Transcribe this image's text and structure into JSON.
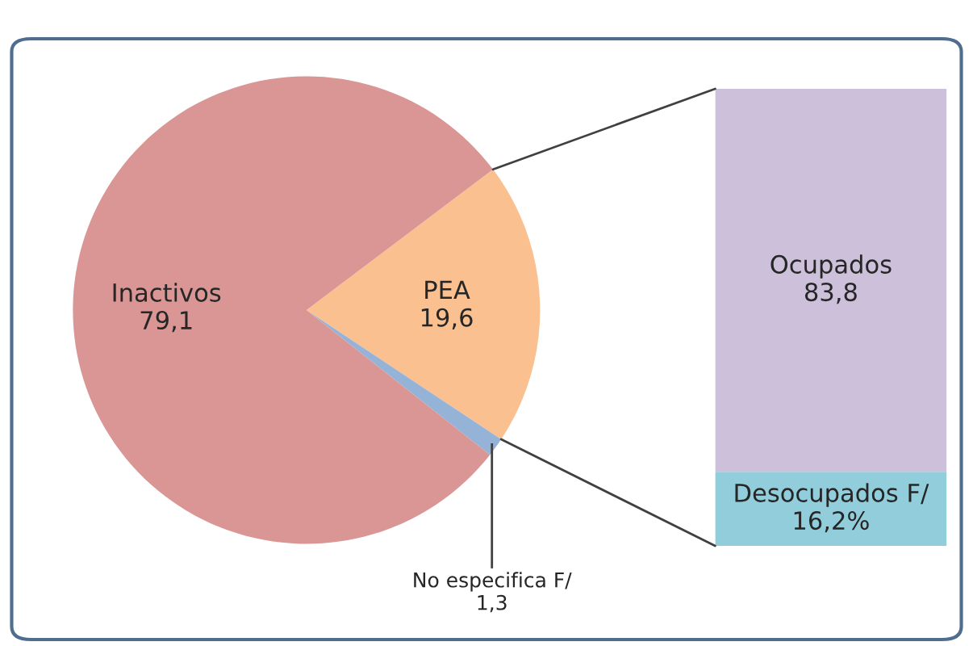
{
  "chart_data": [
    {
      "type": "pie",
      "categories": [
        "PEA",
        "No especifica F/",
        "Inactivos"
      ],
      "values": [
        19.6,
        1.3,
        79.1
      ],
      "colors": [
        "#fac090",
        "#95b3d7",
        "#d99694"
      ],
      "value_labels": [
        "19,6",
        "1,3",
        "79,1"
      ],
      "legend": false
    },
    {
      "type": "bar",
      "stacked": true,
      "categories": [
        null
      ],
      "legend": false,
      "series": [
        {
          "name": "Desocupados F/",
          "color": "#92cddc",
          "values": [
            16.2
          ],
          "value_labels": [
            "16,2%"
          ]
        },
        {
          "name": "Ocupados",
          "color": "#ccc0da",
          "values": [
            83.8
          ],
          "value_labels": [
            "83,8"
          ]
        }
      ]
    }
  ]
}
